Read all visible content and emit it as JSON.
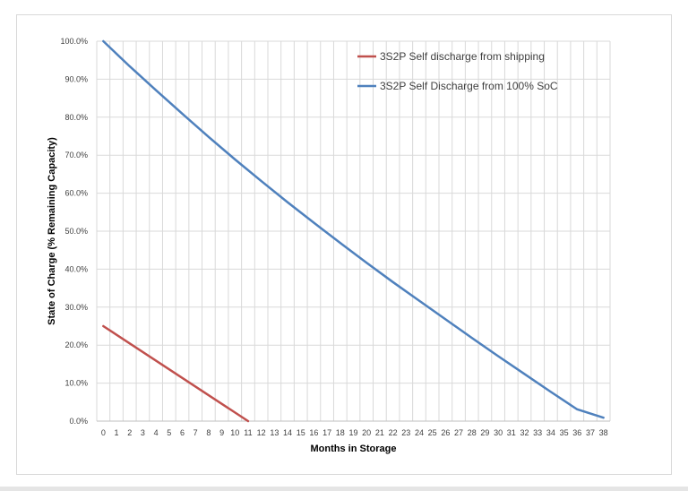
{
  "chart_data": {
    "type": "line",
    "title": "",
    "xlabel": "Months in Storage",
    "ylabel": "State of Charge (% Remaining Capacity)",
    "xlim": [
      0,
      38
    ],
    "ylim": [
      0,
      100
    ],
    "x_ticks": [
      0,
      1,
      2,
      3,
      4,
      5,
      6,
      7,
      8,
      9,
      10,
      11,
      12,
      13,
      14,
      15,
      16,
      17,
      18,
      19,
      20,
      21,
      22,
      23,
      24,
      25,
      26,
      27,
      28,
      29,
      30,
      31,
      32,
      33,
      34,
      35,
      36,
      37,
      38
    ],
    "y_ticks": [
      0,
      10,
      20,
      30,
      40,
      50,
      60,
      70,
      80,
      90,
      100
    ],
    "y_tick_labels": [
      "0.0%",
      "10.0%",
      "20.0%",
      "30.0%",
      "40.0%",
      "50.0%",
      "60.0%",
      "70.0%",
      "80.0%",
      "90.0%",
      "100.0%"
    ],
    "grid": {
      "vertical": true,
      "horizontal": true
    },
    "legend_position": "top-right",
    "series": [
      {
        "name": "3S2P Self discharge from shipping",
        "color": "#c0504d",
        "x": [
          0,
          11
        ],
        "y": [
          25,
          0
        ]
      },
      {
        "name": "3S2P Self Discharge from 100% SoC",
        "color": "#4f81bd",
        "x": [
          0,
          2,
          4,
          6,
          8,
          10,
          12,
          14,
          16,
          18,
          20,
          22,
          24,
          26,
          28,
          30,
          32,
          34,
          36,
          38
        ],
        "y": [
          100,
          93.4,
          87.1,
          80.9,
          74.8,
          68.9,
          63.2,
          57.6,
          52.2,
          46.9,
          41.7,
          36.6,
          31.7,
          26.8,
          21.9,
          17.1,
          12.4,
          7.7,
          3.1,
          0.9
        ]
      }
    ]
  }
}
